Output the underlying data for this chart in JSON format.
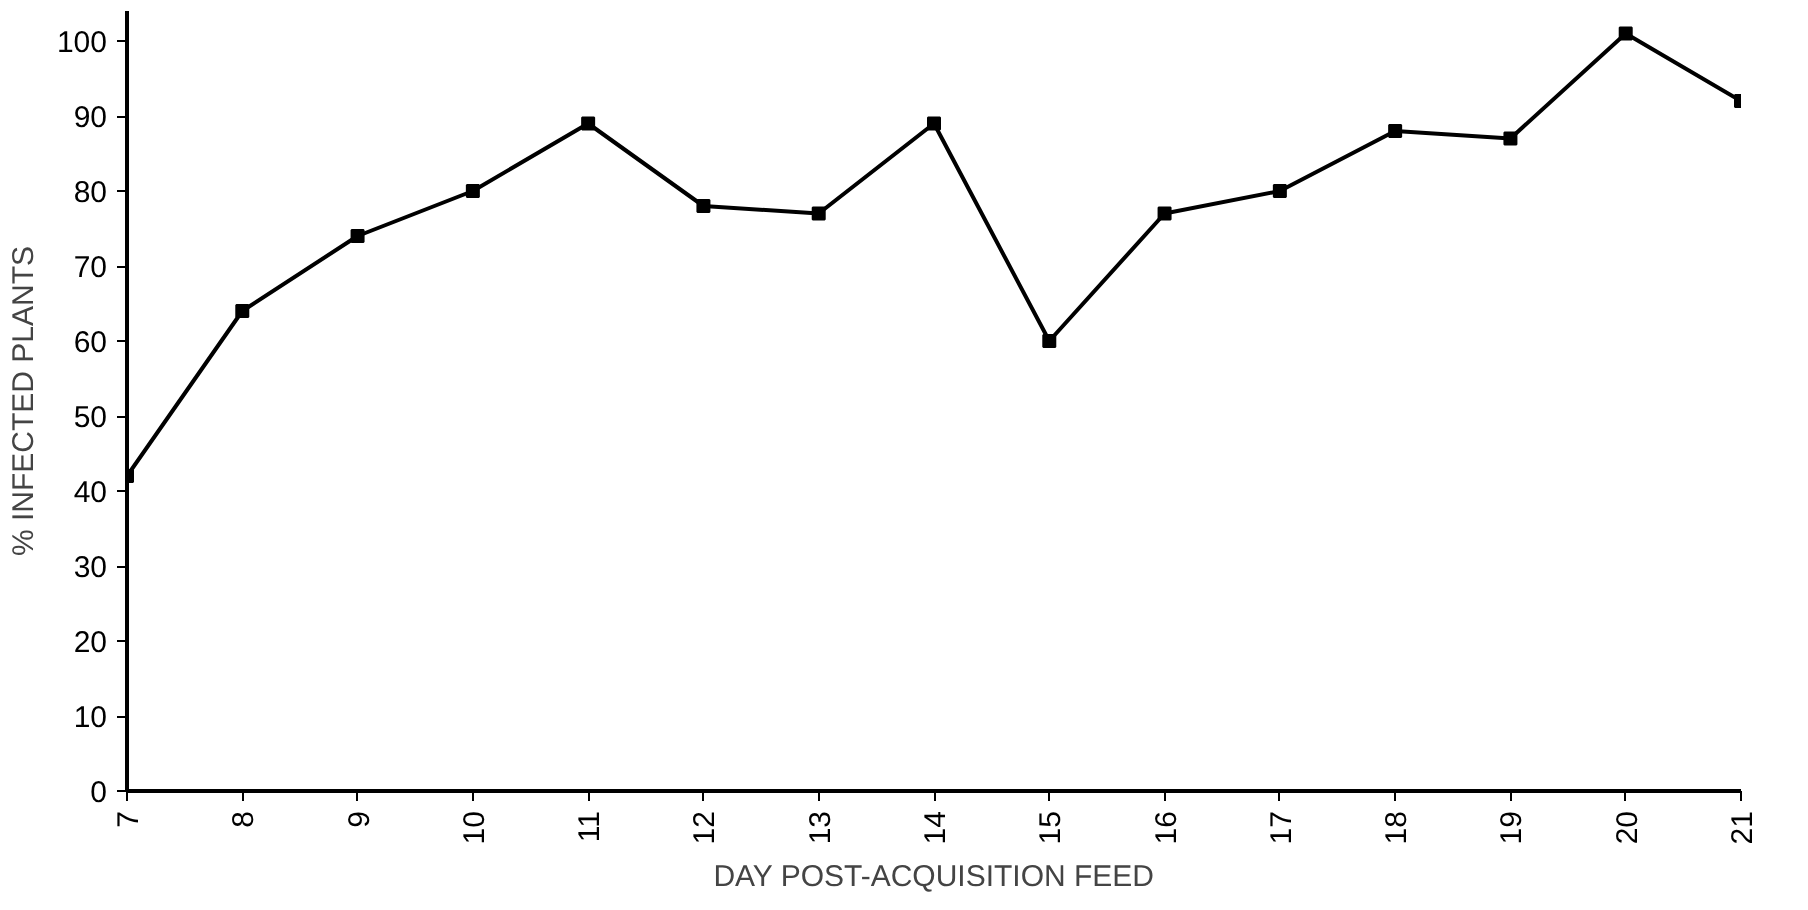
{
  "chart_data": {
    "type": "line",
    "xlabel": "DAY POST-ACQUISITION FEED",
    "ylabel": "% INFECTED PLANTS",
    "x": [
      7,
      8,
      9,
      10,
      11,
      12,
      13,
      14,
      15,
      16,
      17,
      18,
      19,
      20,
      21
    ],
    "series": [
      {
        "color": "#000000",
        "values": [
          42,
          64,
          74,
          80,
          89,
          78,
          77,
          89,
          60,
          77,
          80,
          88,
          87,
          101,
          92
        ]
      }
    ],
    "xlim": [
      7,
      21
    ],
    "xticks": [
      7,
      8,
      9,
      10,
      11,
      12,
      13,
      14,
      15,
      16,
      17,
      18,
      19,
      20,
      21
    ],
    "ylim": [
      0,
      104
    ],
    "yticks": [
      0,
      10,
      20,
      30,
      40,
      50,
      60,
      70,
      80,
      90,
      100
    ],
    "grid": false,
    "marker": "square",
    "line_style": "solid"
  }
}
